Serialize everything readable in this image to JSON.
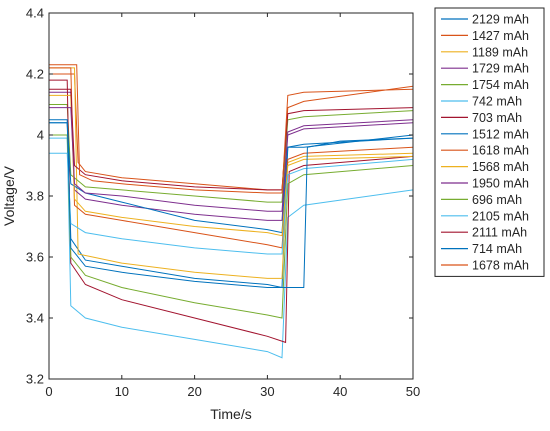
{
  "chart_data": {
    "type": "line",
    "xlabel": "Time/s",
    "ylabel": "Voltage/V",
    "xlim": [
      0,
      50
    ],
    "ylim": [
      3.2,
      4.4
    ],
    "xticks": [
      "0",
      "10",
      "20",
      "30",
      "40",
      "50"
    ],
    "yticks": [
      "3.2",
      "3.4",
      "3.6",
      "3.8",
      "4",
      "4.2",
      "4.4"
    ],
    "grid": false,
    "legend_position": "outside-right",
    "series": [
      {
        "name": "2129 mAh",
        "color": "#0072bd",
        "points": [
          [
            0,
            4.04
          ],
          [
            2.5,
            4.04
          ],
          [
            3,
            3.66
          ],
          [
            5,
            3.59
          ],
          [
            10,
            3.57
          ],
          [
            20,
            3.53
          ],
          [
            30,
            3.51
          ],
          [
            32,
            3.5
          ],
          [
            32.8,
            3.96
          ],
          [
            35,
            3.96
          ],
          [
            50,
            4.0
          ]
        ]
      },
      {
        "name": "1427 mAh",
        "color": "#d95319",
        "points": [
          [
            0,
            4.2
          ],
          [
            3.5,
            4.2
          ],
          [
            4,
            3.91
          ],
          [
            5,
            3.88
          ],
          [
            10,
            3.86
          ],
          [
            20,
            3.84
          ],
          [
            30,
            3.82
          ],
          [
            32,
            3.82
          ],
          [
            32.8,
            4.09
          ],
          [
            35,
            4.11
          ],
          [
            50,
            4.16
          ]
        ]
      },
      {
        "name": "1189 mAh",
        "color": "#edb120",
        "points": [
          [
            0,
            4.22
          ],
          [
            3.5,
            4.22
          ],
          [
            4,
            3.61
          ],
          [
            6,
            3.6
          ],
          [
            10,
            3.58
          ],
          [
            20,
            3.55
          ],
          [
            30,
            3.53
          ],
          [
            32,
            3.53
          ],
          [
            32.8,
            3.91
          ],
          [
            35,
            3.93
          ],
          [
            50,
            3.94
          ]
        ]
      },
      {
        "name": "1729 mAh",
        "color": "#7e2f8e",
        "points": [
          [
            0,
            4.14
          ],
          [
            3,
            4.14
          ],
          [
            3.5,
            3.82
          ],
          [
            5,
            3.79
          ],
          [
            10,
            3.77
          ],
          [
            20,
            3.74
          ],
          [
            30,
            3.72
          ],
          [
            32,
            3.72
          ],
          [
            32.8,
            4.0
          ],
          [
            35,
            4.02
          ],
          [
            50,
            4.04
          ]
        ]
      },
      {
        "name": "1754 mAh",
        "color": "#77ac30",
        "points": [
          [
            0,
            4.1
          ],
          [
            2.5,
            4.1
          ],
          [
            3,
            3.87
          ],
          [
            5,
            3.83
          ],
          [
            10,
            3.82
          ],
          [
            20,
            3.8
          ],
          [
            30,
            3.78
          ],
          [
            32,
            3.78
          ],
          [
            32.8,
            4.05
          ],
          [
            35,
            4.06
          ],
          [
            50,
            4.08
          ]
        ]
      },
      {
        "name": "742 mAh",
        "color": "#4dbeee",
        "points": [
          [
            0,
            3.99
          ],
          [
            2.5,
            3.99
          ],
          [
            3,
            3.44
          ],
          [
            5,
            3.4
          ],
          [
            10,
            3.37
          ],
          [
            20,
            3.33
          ],
          [
            30,
            3.29
          ],
          [
            32,
            3.27
          ],
          [
            32.8,
            3.73
          ],
          [
            35,
            3.77
          ],
          [
            50,
            3.82
          ]
        ]
      },
      {
        "name": "703 mAh",
        "color": "#a2142f",
        "points": [
          [
            0,
            4.18
          ],
          [
            2.5,
            4.18
          ],
          [
            3,
            3.58
          ],
          [
            5,
            3.51
          ],
          [
            10,
            3.46
          ],
          [
            20,
            3.4
          ],
          [
            30,
            3.34
          ],
          [
            32.5,
            3.32
          ],
          [
            33,
            3.88
          ],
          [
            35,
            3.9
          ],
          [
            50,
            3.93
          ]
        ]
      },
      {
        "name": "1512 mAh",
        "color": "#0072bd",
        "points": [
          [
            0,
            4.04
          ],
          [
            2.5,
            4.04
          ],
          [
            3,
            3.84
          ],
          [
            5,
            3.81
          ],
          [
            10,
            3.78
          ],
          [
            20,
            3.72
          ],
          [
            30,
            3.69
          ],
          [
            32,
            3.68
          ],
          [
            32.8,
            3.96
          ],
          [
            35,
            3.97
          ],
          [
            50,
            3.99
          ]
        ]
      },
      {
        "name": "1618 mAh",
        "color": "#d95319",
        "points": [
          [
            0,
            4.22
          ],
          [
            3,
            4.22
          ],
          [
            3.5,
            3.77
          ],
          [
            5,
            3.74
          ],
          [
            10,
            3.72
          ],
          [
            20,
            3.68
          ],
          [
            30,
            3.64
          ],
          [
            32,
            3.63
          ],
          [
            32.8,
            3.92
          ],
          [
            35,
            3.94
          ],
          [
            50,
            3.96
          ]
        ]
      },
      {
        "name": "1568 mAh",
        "color": "#edb120",
        "points": [
          [
            0,
            4.13
          ],
          [
            3,
            4.13
          ],
          [
            3.5,
            3.79
          ],
          [
            5,
            3.75
          ],
          [
            10,
            3.73
          ],
          [
            20,
            3.7
          ],
          [
            30,
            3.68
          ],
          [
            32,
            3.67
          ],
          [
            32.8,
            3.9
          ],
          [
            35,
            3.92
          ],
          [
            50,
            3.93
          ]
        ]
      },
      {
        "name": "1950 mAh",
        "color": "#7e2f8e",
        "points": [
          [
            0,
            4.09
          ],
          [
            3,
            4.09
          ],
          [
            3.5,
            3.84
          ],
          [
            5,
            3.81
          ],
          [
            10,
            3.8
          ],
          [
            20,
            3.77
          ],
          [
            30,
            3.75
          ],
          [
            32,
            3.75
          ],
          [
            32.8,
            4.01
          ],
          [
            35,
            4.03
          ],
          [
            50,
            4.05
          ]
        ]
      },
      {
        "name": "696 mAh",
        "color": "#77ac30",
        "points": [
          [
            0,
            4.0
          ],
          [
            2.5,
            4.0
          ],
          [
            3,
            3.6
          ],
          [
            5,
            3.54
          ],
          [
            10,
            3.5
          ],
          [
            20,
            3.45
          ],
          [
            30,
            3.41
          ],
          [
            32,
            3.4
          ],
          [
            32.8,
            3.84
          ],
          [
            35,
            3.87
          ],
          [
            50,
            3.9
          ]
        ]
      },
      {
        "name": "2105 mAh",
        "color": "#4dbeee",
        "points": [
          [
            0,
            3.94
          ],
          [
            2.5,
            3.94
          ],
          [
            3,
            3.71
          ],
          [
            5,
            3.68
          ],
          [
            10,
            3.66
          ],
          [
            20,
            3.63
          ],
          [
            30,
            3.61
          ],
          [
            32,
            3.61
          ],
          [
            32.8,
            3.87
          ],
          [
            35,
            3.89
          ],
          [
            50,
            3.92
          ]
        ]
      },
      {
        "name": "2111 mAh",
        "color": "#a2142f",
        "points": [
          [
            0,
            4.15
          ],
          [
            3,
            4.15
          ],
          [
            3.5,
            3.9
          ],
          [
            5,
            3.87
          ],
          [
            10,
            3.85
          ],
          [
            20,
            3.83
          ],
          [
            30,
            3.82
          ],
          [
            32,
            3.82
          ],
          [
            32.8,
            4.07
          ],
          [
            35,
            4.08
          ],
          [
            50,
            4.09
          ]
        ]
      },
      {
        "name": "714 mAh",
        "color": "#0072bd",
        "points": [
          [
            0,
            4.05
          ],
          [
            2.5,
            4.05
          ],
          [
            3,
            3.63
          ],
          [
            5,
            3.57
          ],
          [
            10,
            3.55
          ],
          [
            20,
            3.52
          ],
          [
            30,
            3.5
          ],
          [
            32,
            3.5
          ],
          [
            32.5,
            3.5
          ],
          [
            35,
            3.5
          ],
          [
            35.5,
            3.96
          ],
          [
            40,
            3.98
          ],
          [
            50,
            3.99
          ]
        ]
      },
      {
        "name": "1678 mAh",
        "color": "#d95319",
        "points": [
          [
            0,
            4.23
          ],
          [
            3.8,
            4.23
          ],
          [
            4.2,
            3.87
          ],
          [
            6,
            3.85
          ],
          [
            10,
            3.84
          ],
          [
            20,
            3.82
          ],
          [
            30,
            3.81
          ],
          [
            32,
            3.81
          ],
          [
            32.8,
            4.13
          ],
          [
            35,
            4.14
          ],
          [
            50,
            4.15
          ]
        ]
      }
    ]
  }
}
